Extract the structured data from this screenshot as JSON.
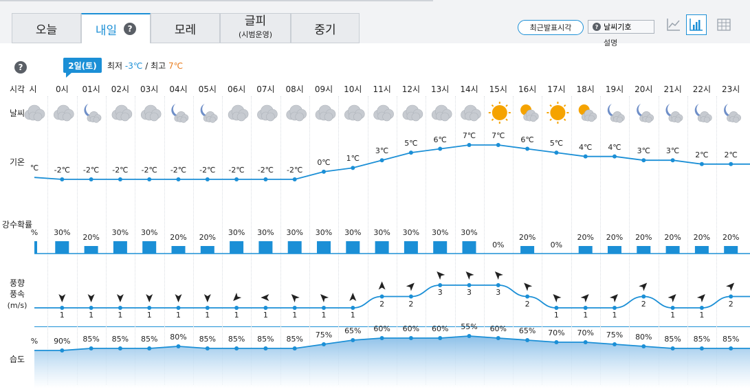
{
  "tabs": [
    {
      "label": "오늘",
      "sub": ""
    },
    {
      "label": "내일",
      "sub": ""
    },
    {
      "label": "모레",
      "sub": ""
    },
    {
      "label": "글피",
      "sub": "(시범운영)"
    },
    {
      "label": "중기",
      "sub": ""
    }
  ],
  "active_tab": 1,
  "help_glyph": "?",
  "toolbar": {
    "recent_button": "최근발표시각",
    "weather_symbol_button": "날씨기호",
    "weather_symbol_sub": "설명",
    "view_buttons": [
      "line-chart-view-icon",
      "bar-chart-view-icon",
      "table-view-icon"
    ]
  },
  "day": {
    "date_label": "2일(토)",
    "min_label": "최저",
    "min_value": "-3℃",
    "separator": "/",
    "max_label": "최고",
    "max_value": "7℃"
  },
  "row_labels": {
    "time": "시각",
    "weather": "날씨",
    "temp": "기온",
    "precip": "강수확률",
    "wind1": "풍향",
    "wind2": "풍속",
    "wind3": "(m/s)",
    "humidity": "습도"
  },
  "hours": [
    "시",
    "0시",
    "01시",
    "02시",
    "03시",
    "04시",
    "05시",
    "06시",
    "07시",
    "08시",
    "09시",
    "10시",
    "11시",
    "12시",
    "13시",
    "14시",
    "15시",
    "16시",
    "17시",
    "18시",
    "19시",
    "20시",
    "21시",
    "22시",
    "23시"
  ],
  "weather_icons": [
    "cloudy",
    "cloudy",
    "cloud-moon",
    "cloudy",
    "cloudy",
    "cloud-moon",
    "cloud-moon",
    "cloudy",
    "cloudy",
    "cloudy",
    "cloudy",
    "cloudy",
    "cloudy",
    "cloudy",
    "cloudy",
    "cloudy",
    "sunny",
    "partly-sunny",
    "sunny",
    "partly-sunny",
    "cloud-moon",
    "cloud-moon",
    "cloud-moon",
    "cloud-moon",
    "cloud-moon"
  ],
  "temperature": {
    "labels": [
      "℃",
      "-2℃",
      "-2℃",
      "-2℃",
      "-2℃",
      "-2℃",
      "-2℃",
      "-2℃",
      "-2℃",
      "-2℃",
      "0℃",
      "1℃",
      "3℃",
      "5℃",
      "6℃",
      "7℃",
      "7℃",
      "6℃",
      "5℃",
      "4℃",
      "4℃",
      "3℃",
      "3℃",
      "2℃",
      "2℃"
    ],
    "values": [
      -1.5,
      -2,
      -2,
      -2,
      -2,
      -2,
      -2,
      -2,
      -2,
      -2,
      0,
      1,
      3,
      5,
      6,
      7,
      7,
      6,
      5,
      4,
      4,
      3,
      3,
      2,
      2
    ]
  },
  "precipitation": {
    "labels": [
      "%",
      "30%",
      "20%",
      "30%",
      "30%",
      "20%",
      "20%",
      "30%",
      "30%",
      "30%",
      "30%",
      "30%",
      "30%",
      "30%",
      "30%",
      "30%",
      "0%",
      "20%",
      "0%",
      "20%",
      "20%",
      "20%",
      "20%",
      "20%",
      "20%"
    ],
    "values": [
      30,
      30,
      20,
      30,
      30,
      20,
      20,
      30,
      30,
      30,
      30,
      30,
      30,
      30,
      30,
      30,
      0,
      20,
      0,
      20,
      20,
      20,
      20,
      20,
      20
    ]
  },
  "wind": {
    "speed_labels": [
      "",
      "1",
      "1",
      "1",
      "1",
      "1",
      "1",
      "1",
      "1",
      "1",
      "1",
      "1",
      "2",
      "2",
      "3",
      "3",
      "3",
      "2",
      "1",
      "1",
      "1",
      "2",
      "1",
      "1",
      "2"
    ],
    "speeds": [
      1,
      1,
      1,
      1,
      1,
      1,
      1,
      1,
      1,
      1,
      1,
      1,
      2,
      2,
      3,
      3,
      3,
      2,
      1,
      1,
      1,
      2,
      1,
      1,
      2
    ],
    "directions_deg": [
      180,
      180,
      180,
      180,
      180,
      180,
      180,
      225,
      270,
      315,
      315,
      0,
      0,
      45,
      315,
      315,
      315,
      315,
      315,
      45,
      45,
      45,
      45,
      45,
      45
    ]
  },
  "humidity": {
    "labels": [
      "%",
      "90%",
      "85%",
      "85%",
      "85%",
      "80%",
      "85%",
      "85%",
      "85%",
      "85%",
      "75%",
      "65%",
      "60%",
      "60%",
      "60%",
      "55%",
      "60%",
      "65%",
      "70%",
      "70%",
      "75%",
      "80%",
      "85%",
      "85%",
      "85%"
    ],
    "values": [
      90,
      90,
      85,
      85,
      85,
      80,
      85,
      85,
      85,
      85,
      75,
      65,
      60,
      60,
      60,
      55,
      60,
      65,
      70,
      70,
      75,
      80,
      85,
      85,
      85
    ]
  },
  "colors": {
    "accent": "#1b8fd6",
    "max_temp": "#e87b1c",
    "sun": "#f5a300",
    "cloud": "#c7cbd1",
    "moon": "#6f8fc8"
  }
}
